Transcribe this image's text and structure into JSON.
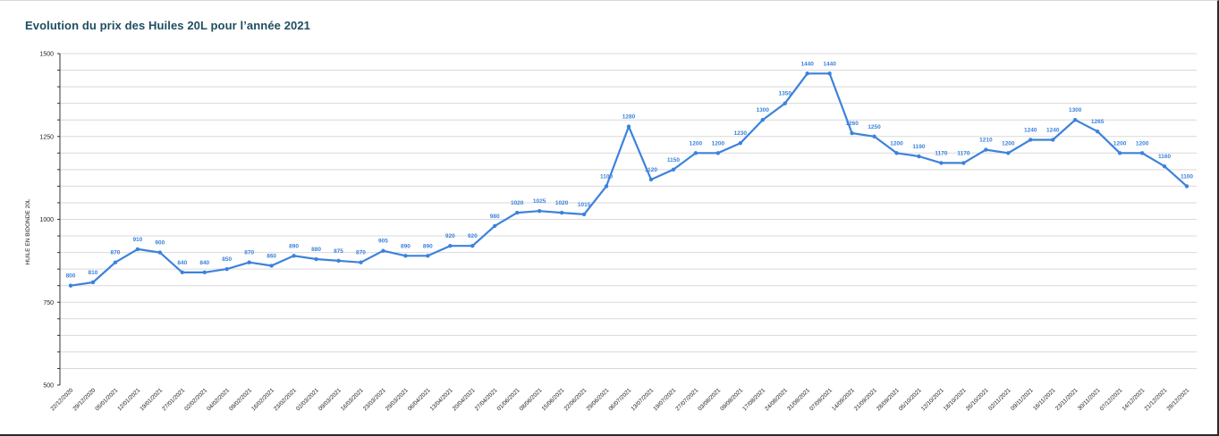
{
  "title": "Evolution du prix des Huiles 20L pour l’année 2021",
  "colors": {
    "title": "#1f4e5f",
    "line": "#3c82dc",
    "label": "#3c82dc"
  },
  "chart_data": {
    "type": "line",
    "title": "Evolution du prix des Huiles 20L pour l’année 2021",
    "xlabel": "",
    "ylabel": "HUILE EN BIDONDE 20L",
    "ylim": [
      500,
      1500
    ],
    "yticks": [
      500,
      750,
      1000,
      1250,
      1500
    ],
    "grid": true,
    "legend": "none",
    "categories": [
      "22/12/2020",
      "29/12/2020",
      "05/01/2021",
      "12/01/2021",
      "19/01/2021",
      "27/01/2021",
      "02/02/2021",
      "04/02/2021",
      "09/02/2021",
      "16/02/2021",
      "23/02/2021",
      "02/03/2021",
      "09/03/2021",
      "16/03/2021",
      "23/03/2021",
      "29/03/2021",
      "06/04/2021",
      "13/04/2021",
      "20/04/2021",
      "27/04/2021",
      "01/06/2021",
      "08/06/2021",
      "15/06/2021",
      "22/06/2021",
      "29/06/2021",
      "06/07/2021",
      "13/07/2021",
      "19/07/2021",
      "27/07/2021",
      "03/08/2021",
      "09/08/2021",
      "17/08/2021",
      "24/08/2021",
      "31/08/2021",
      "07/09/2021",
      "14/09/2021",
      "21/09/2021",
      "28/09/2021",
      "05/10/2021",
      "12/10/2021",
      "18/10/2021",
      "26/10/2021",
      "02/11/2021",
      "09/11/2021",
      "16/11/2021",
      "23/11/2021",
      "30/11/2021",
      "07/12/2021",
      "14/12/2021",
      "21/12/2021",
      "28/12/2021"
    ],
    "series": [
      {
        "name": "",
        "values": [
          800,
          810,
          870,
          910,
          900,
          840,
          840,
          850,
          870,
          860,
          890,
          880,
          875,
          870,
          905,
          890,
          890,
          920,
          920,
          980,
          1020,
          1025,
          1020,
          1015,
          1100,
          1280,
          1120,
          1150,
          1200,
          1200,
          1230,
          1300,
          1350,
          1440,
          1440,
          1260,
          1250,
          1200,
          1190,
          1170,
          1170,
          1210,
          1200,
          1240,
          1240,
          1300,
          1265,
          1200,
          1200,
          1160,
          1100
        ]
      }
    ]
  }
}
